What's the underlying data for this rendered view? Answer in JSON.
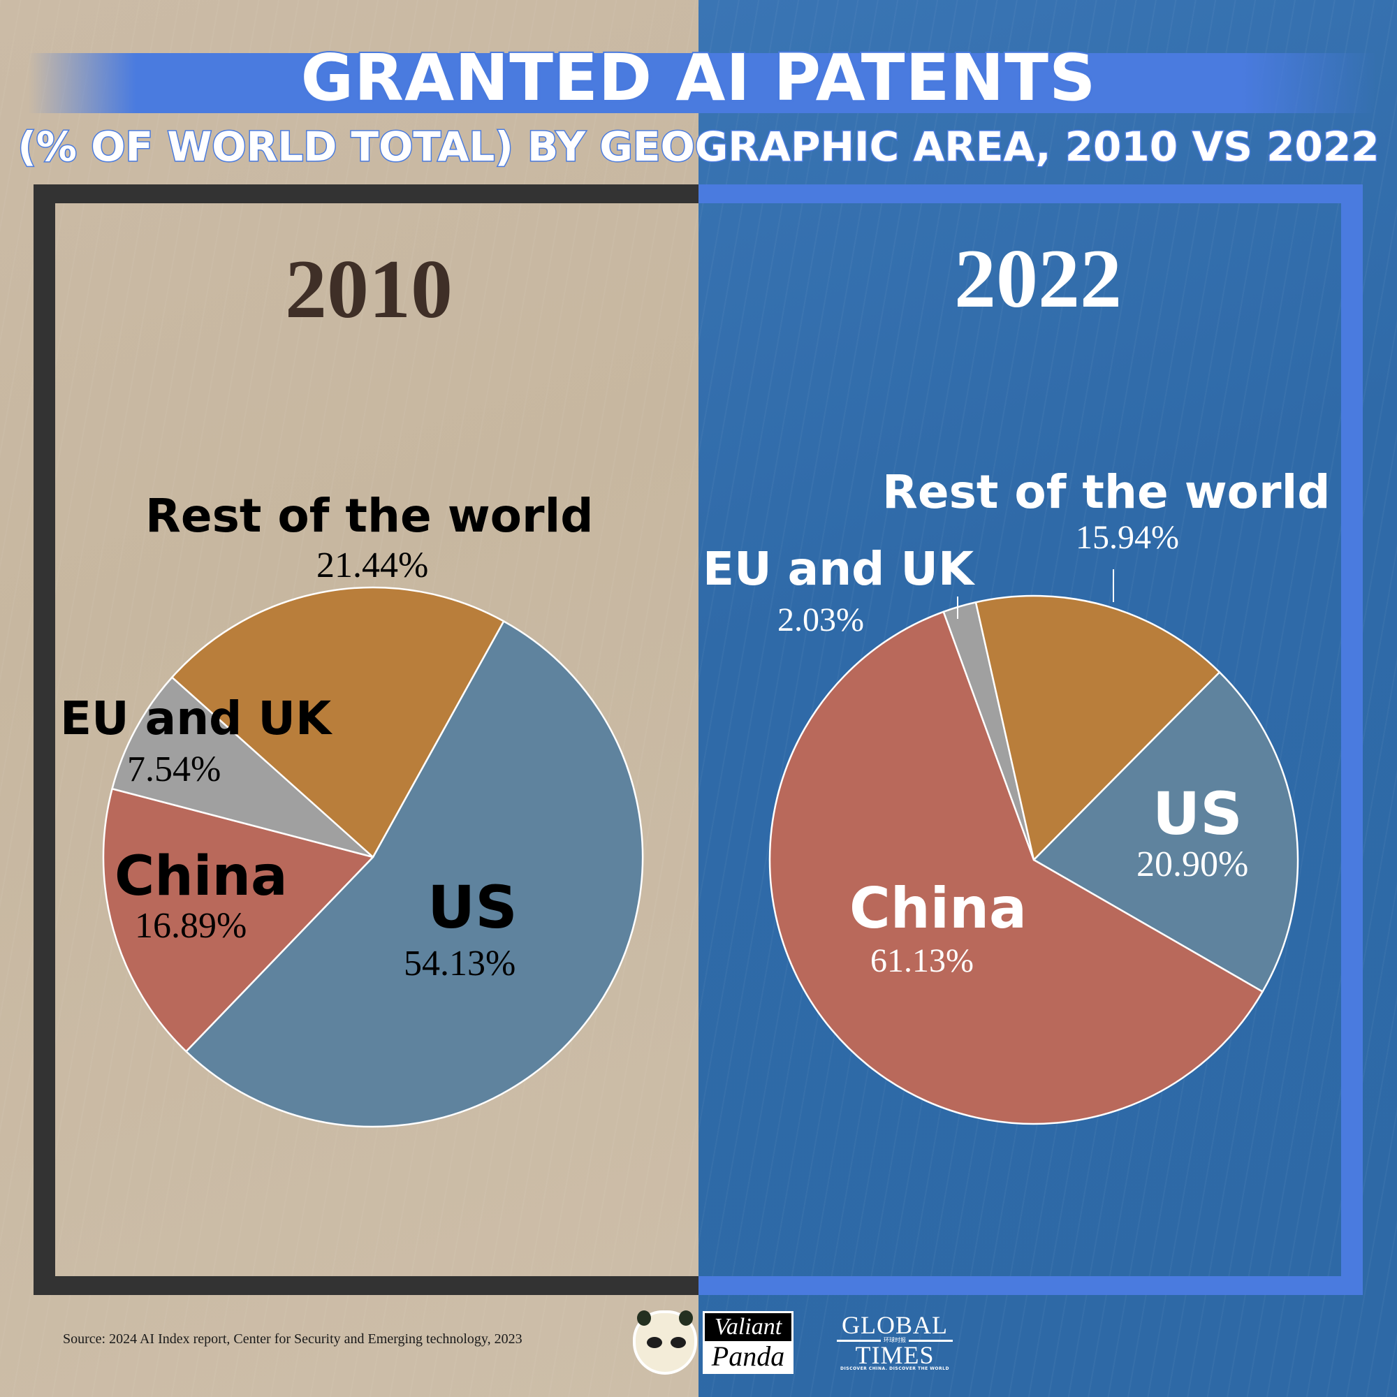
{
  "header": {
    "title": "GRANTED AI PATENTS",
    "subtitle": "(% OF WORLD TOTAL) BY GEOGRAPHIC AREA, 2010 VS 2022"
  },
  "colors": {
    "left_background": "#c9b9a3",
    "right_background": "#2f6aa8",
    "left_frame": "#333333",
    "right_frame": "#4a7bdf",
    "us": "#5f839e",
    "china": "#b9695b",
    "eu_uk": "#a0a0a0",
    "rest_of_world": "#b97e3b"
  },
  "panels": [
    {
      "year": "2010",
      "slices": [
        {
          "key": "rest_of_world",
          "name": "Rest of the world",
          "value_label": "21.44%"
        },
        {
          "key": "eu_uk",
          "name": "EU and UK",
          "value_label": "7.54%"
        },
        {
          "key": "china",
          "name": "China",
          "value_label": "16.89%"
        },
        {
          "key": "us",
          "name": "US",
          "value_label": "54.13%"
        }
      ]
    },
    {
      "year": "2022",
      "slices": [
        {
          "key": "rest_of_world",
          "name": "Rest of the world",
          "value_label": "15.94%"
        },
        {
          "key": "eu_uk",
          "name": "EU and UK",
          "value_label": "2.03%"
        },
        {
          "key": "china",
          "name": "China",
          "value_label": "61.13%"
        },
        {
          "key": "us",
          "name": "US",
          "value_label": "20.90%"
        }
      ]
    }
  ],
  "footer": {
    "source": "Source: 2024 AI Index report, Center for Security and Emerging technology, 2023",
    "logo_valiant_panda": {
      "line1": "Valiant",
      "line2": "Panda"
    },
    "logo_global_times": {
      "line1": "GLOBAL",
      "chinese": "环球时报",
      "line2": "TIMES",
      "tagline": "DISCOVER CHINA. DISCOVER THE WORLD"
    }
  },
  "chart_data": [
    {
      "type": "pie",
      "title": "2010",
      "categories": [
        "US",
        "China",
        "EU and UK",
        "Rest of the world"
      ],
      "values": [
        54.13,
        16.89,
        7.54,
        21.44
      ],
      "colors": [
        "#5f839e",
        "#b9695b",
        "#a0a0a0",
        "#b97e3b"
      ],
      "start_angle_deg": 29,
      "direction": "clockwise",
      "center": [
        534,
        1227
      ],
      "radius": 386
    },
    {
      "type": "pie",
      "title": "2022",
      "categories": [
        "US",
        "China",
        "EU and UK",
        "Rest of the world"
      ],
      "values": [
        20.9,
        61.13,
        2.03,
        15.94
      ],
      "colors": [
        "#5f839e",
        "#b9695b",
        "#a0a0a0",
        "#b97e3b"
      ],
      "start_angle_deg": 44.7,
      "direction": "clockwise",
      "center": [
        1480,
        1231
      ],
      "radius": 378
    }
  ]
}
